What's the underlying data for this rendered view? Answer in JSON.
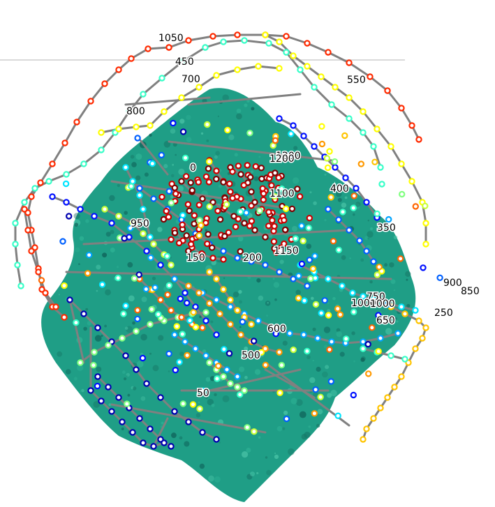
{
  "figure": {
    "background_color": "#ffffff",
    "edge_color": "#808080",
    "separator_line_color": "#d9d9d9",
    "colormap": "jet",
    "frame_labels": [
      "0",
      "50",
      "150",
      "200",
      "250",
      "350",
      "400",
      "450",
      "500",
      "550",
      "600",
      "650",
      "700",
      "750",
      "800",
      "850",
      "900",
      "950",
      "1000",
      "1050",
      "1100",
      "1150",
      "1200"
    ],
    "colony_colors": [
      "#1f9e86",
      "#2fb396",
      "#177a68",
      "#4cc6a9",
      "#0e5e57"
    ],
    "node_fill": "#ffffff",
    "node_ring_colors": [
      "#800000",
      "#cc0000",
      "#ff2a00",
      "#ff6600",
      "#ff9900",
      "#ffc400",
      "#ffff00",
      "#c8ff37",
      "#80ff80",
      "#37ffc8",
      "#00e5ff",
      "#00a4ff",
      "#0060ff",
      "#0010ff",
      "#0000b0"
    ]
  }
}
